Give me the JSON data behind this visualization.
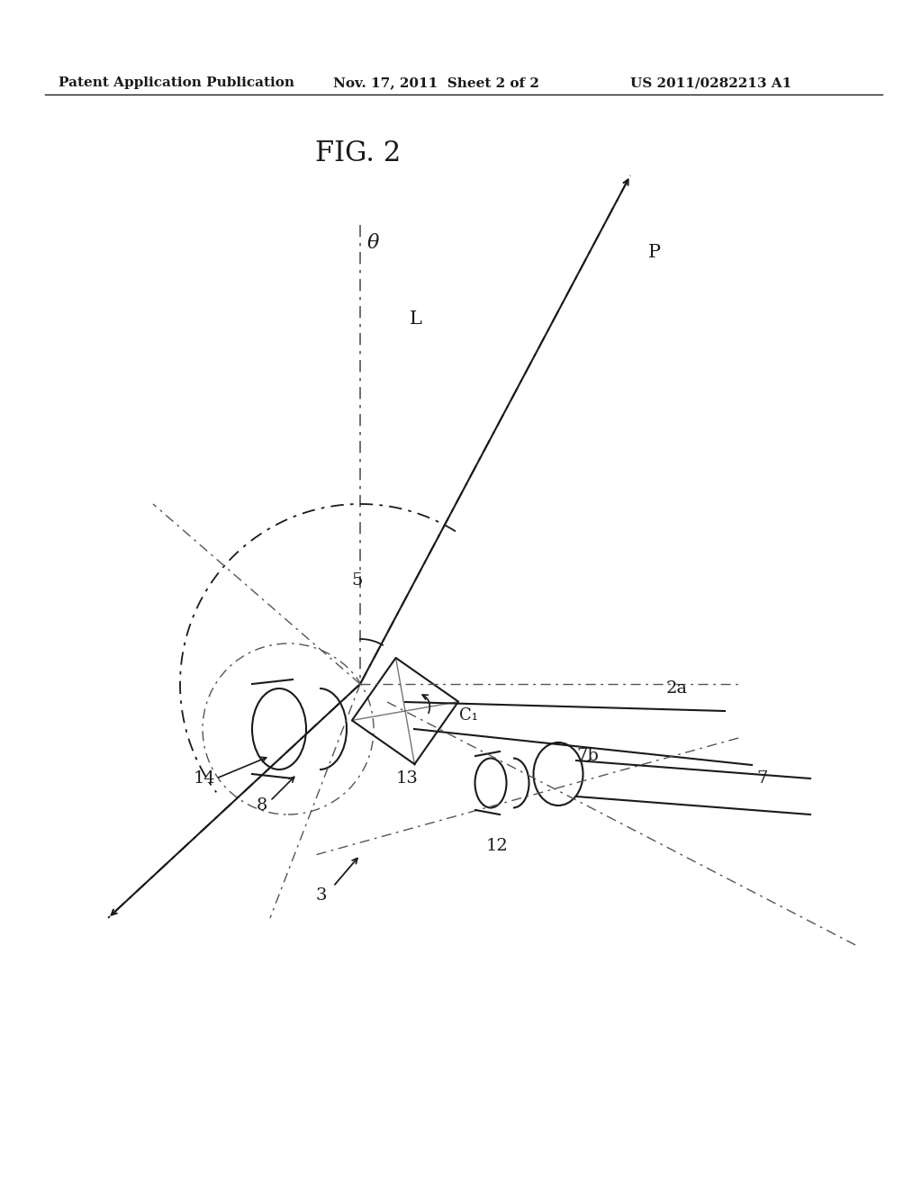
{
  "bg_color": "#ffffff",
  "fig_title": "FIG. 2",
  "header_left": "Patent Application Publication",
  "header_mid": "Nov. 17, 2011  Sheet 2 of 2",
  "header_right": "US 2011/0282213 A1",
  "labels": {
    "theta": "θ",
    "L": "L",
    "P": "P",
    "5": "5",
    "14": "14",
    "8": "8",
    "13": "13",
    "3": "3",
    "2a": "2a",
    "C1": "C₁",
    "7b": "7b",
    "7": "7",
    "12": "12"
  },
  "line_color": "#1a1a1a",
  "dashdot_color": "#555555",
  "text_color": "#1a1a1a"
}
